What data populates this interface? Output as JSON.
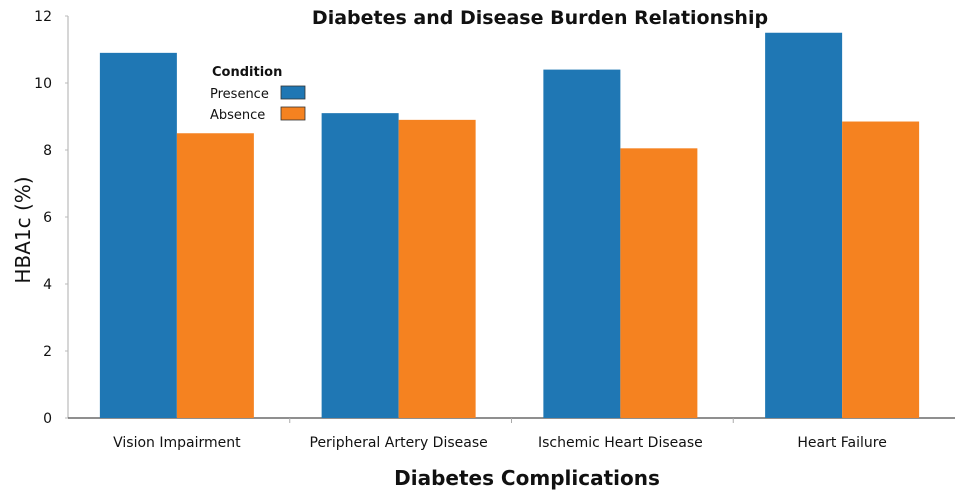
{
  "chart_data": {
    "type": "bar",
    "title": "Diabetes and Disease Burden Relationship",
    "xlabel": "Diabetes Complications",
    "ylabel": "HBA1c  (%)",
    "ylim": [
      0,
      12
    ],
    "yticks": [
      0,
      2,
      4,
      6,
      8,
      10,
      12
    ],
    "grid": false,
    "categories": [
      "Vision Impairment",
      "Peripheral Artery Disease",
      "Ischemic Heart Disease",
      "Heart Failure"
    ],
    "legend": {
      "title": "Condition",
      "position": "top-left"
    },
    "series": [
      {
        "name": "Presence",
        "color": "#1f77b4",
        "values": [
          10.9,
          9.1,
          10.4,
          11.5
        ]
      },
      {
        "name": "Absence",
        "color": "#f58220",
        "values": [
          8.5,
          8.9,
          8.05,
          8.85
        ]
      }
    ]
  }
}
